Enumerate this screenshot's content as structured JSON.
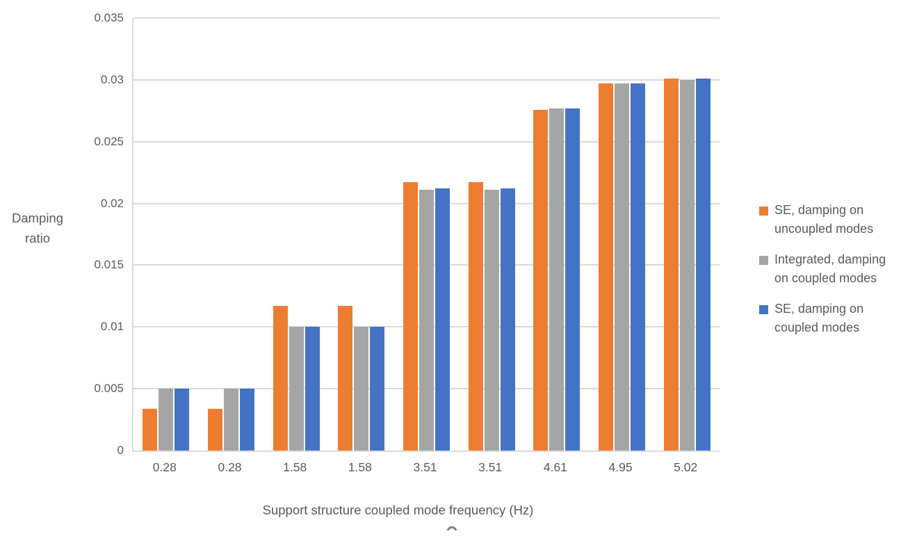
{
  "chart_data": {
    "type": "bar",
    "title": "",
    "xlabel": "Support structure coupled mode frequency (Hz)",
    "ylabel": "Damping ratio",
    "categories": [
      "0.28",
      "0.28",
      "1.58",
      "1.58",
      "3.51",
      "3.51",
      "4.61",
      "4.95",
      "5.02"
    ],
    "series": [
      {
        "name": "SE, damping on uncoupled modes",
        "name_lines": [
          "SE, damping on",
          "uncoupled modes"
        ],
        "color": "#ED7D31",
        "values": [
          0.0034,
          0.0034,
          0.0117,
          0.0117,
          0.0217,
          0.0217,
          0.0276,
          0.0297,
          0.0301
        ]
      },
      {
        "name": "Integrated, damping on coupled modes",
        "name_lines": [
          "Integrated, damping",
          "on coupled modes"
        ],
        "color": "#A5A5A5",
        "values": [
          0.005,
          0.005,
          0.01,
          0.01,
          0.0211,
          0.0211,
          0.0277,
          0.0297,
          0.03
        ]
      },
      {
        "name": "SE, damping on coupled modes",
        "name_lines": [
          "SE, damping on",
          "coupled modes"
        ],
        "color": "#4472C4",
        "values": [
          0.005,
          0.005,
          0.01,
          0.01,
          0.0212,
          0.0212,
          0.0277,
          0.0297,
          0.0301
        ]
      }
    ],
    "ylim": [
      0,
      0.035
    ],
    "yticks": [
      "0",
      "0.005",
      "0.01",
      "0.015",
      "0.02",
      "0.025",
      "0.03",
      "0.035"
    ],
    "grid": true,
    "legend_position": "right"
  },
  "colors": {
    "gridline": "#D9D9D9",
    "axis_line": "#D9D9D9",
    "text": "#595959"
  }
}
